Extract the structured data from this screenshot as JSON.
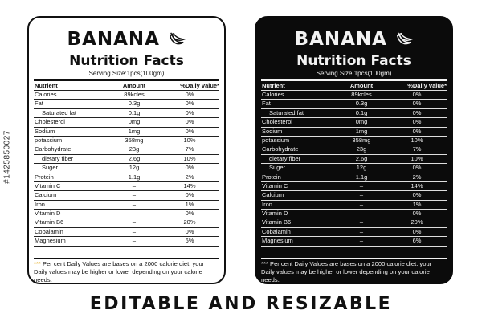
{
  "side_id": "#1425850027",
  "label": {
    "title": "BANANA",
    "heading": "Nutrition Facts",
    "serving": "Serving Size:1pcs(100gm)",
    "columns": {
      "nutrient": "Nutrient",
      "amount": "Amount",
      "daily": "%Daily value*"
    },
    "rows": [
      {
        "nutrient": "Calories",
        "amount": "89kcles",
        "daily": "0%"
      },
      {
        "nutrient": "Fat",
        "amount": "0.3g",
        "daily": "0%"
      },
      {
        "nutrient": "Saturated fat",
        "amount": "0.1g",
        "daily": "0%"
      },
      {
        "nutrient": "Cholesterol",
        "amount": "0mg",
        "daily": "0%"
      },
      {
        "nutrient": "Sodium",
        "amount": "1mg",
        "daily": "0%"
      },
      {
        "nutrient": "potassium",
        "amount": "358mg",
        "daily": "10%"
      },
      {
        "nutrient": "Carbohydrate",
        "amount": "23g",
        "daily": "7%"
      },
      {
        "nutrient": "dietary fiber",
        "amount": "2.6g",
        "daily": "10%"
      },
      {
        "nutrient": "Suger",
        "amount": "12g",
        "daily": "0%"
      },
      {
        "nutrient": "Protein",
        "amount": "1.1g",
        "daily": "2%"
      },
      {
        "nutrient": "Vitamin C",
        "amount": "–",
        "daily": "14%"
      },
      {
        "nutrient": "Calcium",
        "amount": "–",
        "daily": "0%"
      },
      {
        "nutrient": "Iron",
        "amount": "–",
        "daily": "1%"
      },
      {
        "nutrient": "Vitamin D",
        "amount": "–",
        "daily": "0%"
      },
      {
        "nutrient": "Vitamin B6",
        "amount": "–",
        "daily": "20%"
      },
      {
        "nutrient": "Cobalamin",
        "amount": "–",
        "daily": "0%"
      },
      {
        "nutrient": "Magnesium",
        "amount": "–",
        "daily": "6%"
      }
    ],
    "footnote_stars": "***",
    "footnote": "Per cent Daily Values are bases on a 2000 calorie diet. your Daily values may be higher or lower depending on your calorie needs."
  },
  "banner": "EDITABLE AND RESIZABLE",
  "icon": "banana-icon"
}
